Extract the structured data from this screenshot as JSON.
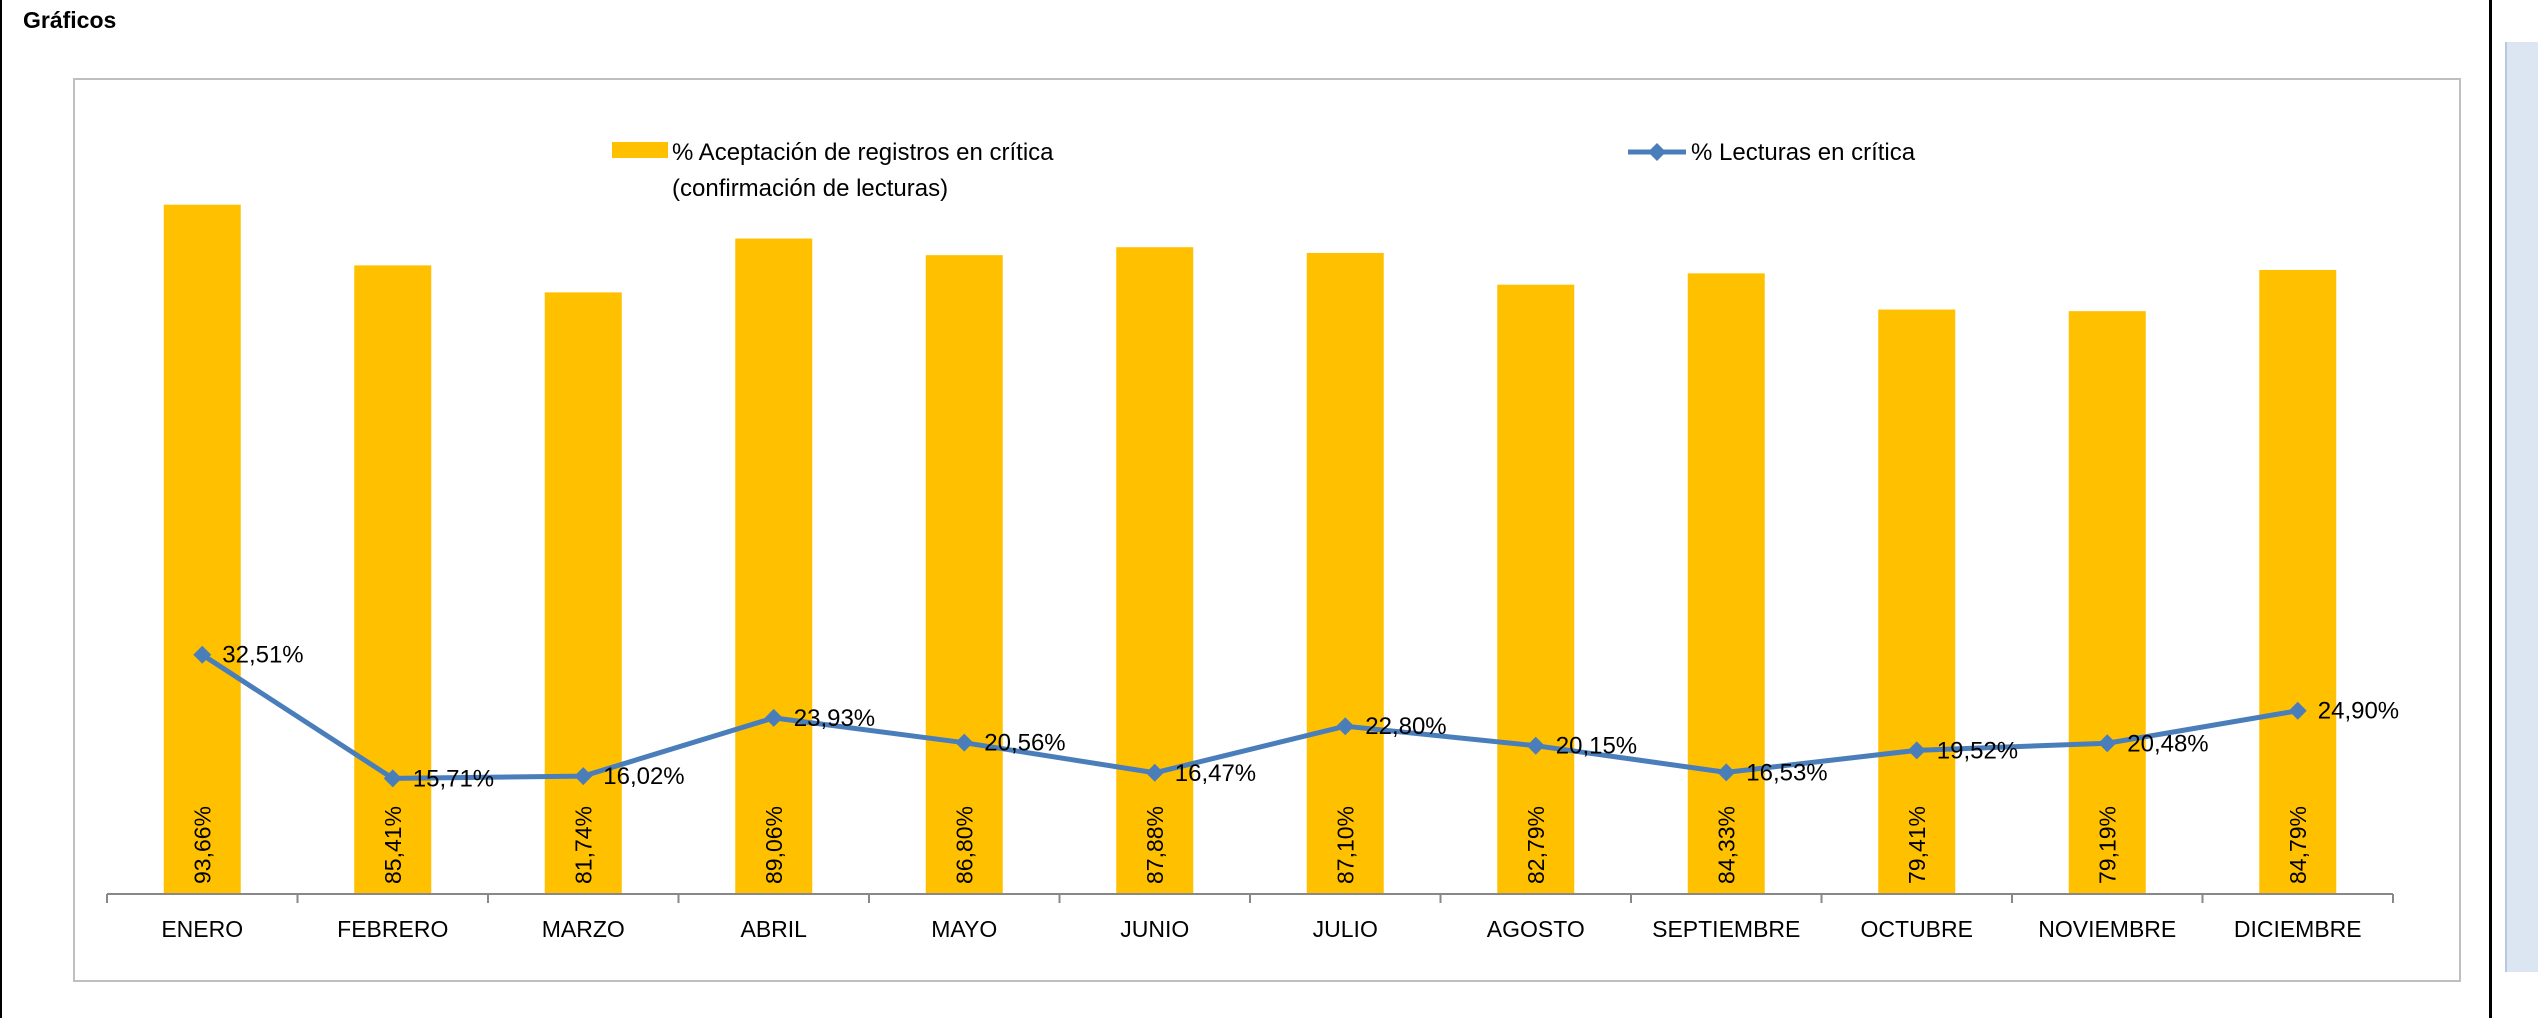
{
  "sheet": {
    "title": "Gráficos"
  },
  "chart_data": {
    "type": "bar",
    "categories": [
      "ENERO",
      "FEBRERO",
      "MARZO",
      "ABRIL",
      "MAYO",
      "JUNIO",
      "JULIO",
      "AGOSTO",
      "SEPTIEMBRE",
      "OCTUBRE",
      "NOVIEMBRE",
      "DICIEMBRE"
    ],
    "series": [
      {
        "name": "% Aceptación de registros en crítica (confirmación de lecturas)",
        "legend_lines": [
          "% Aceptación de registros en crítica",
          "(confirmación de lecturas)"
        ],
        "type": "bar",
        "color": "#ffc000",
        "values": [
          93.66,
          85.41,
          81.74,
          89.06,
          86.8,
          87.88,
          87.1,
          82.79,
          84.33,
          79.41,
          79.19,
          84.79
        ],
        "labels": [
          "93,66%",
          "85,41%",
          "81,74%",
          "89,06%",
          "86,80%",
          "87,88%",
          "87,10%",
          "82,79%",
          "84,33%",
          "79,41%",
          "79,19%",
          "84,79%"
        ]
      },
      {
        "name": "% Lecturas en crítica",
        "type": "line",
        "color": "#4a7ebb",
        "values": [
          32.51,
          15.71,
          16.02,
          23.93,
          20.56,
          16.47,
          22.8,
          20.15,
          16.53,
          19.52,
          20.48,
          24.9
        ],
        "labels": [
          "32,51%",
          "15,71%",
          "16,02%",
          "23,93%",
          "20,56%",
          "16,47%",
          "22,80%",
          "20,15%",
          "16,53%",
          "19,52%",
          "20,48%",
          "24,90%"
        ]
      }
    ],
    "ylim": [
      0,
      100
    ],
    "grid": false,
    "legend": "top",
    "xlabel": "",
    "ylabel": "",
    "title": ""
  }
}
